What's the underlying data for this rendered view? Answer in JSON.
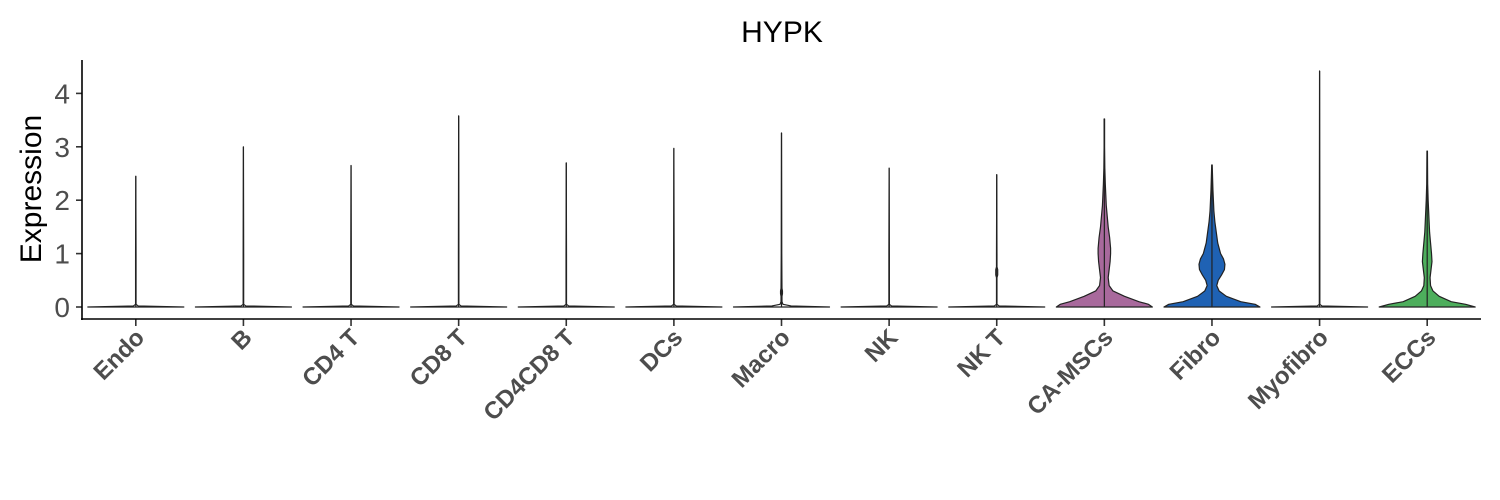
{
  "chart_data": {
    "type": "violin",
    "title": "HYPK",
    "xlabel": "",
    "ylabel": "Expression",
    "ylim": [
      -0.2,
      4.6
    ],
    "yticks": [
      "0",
      "1",
      "2",
      "3",
      "4"
    ],
    "grid": false,
    "legend": "none",
    "categories": [
      "Endo",
      "B",
      "CD4 T",
      "CD8 T",
      "CD4CD8 T",
      "DCs",
      "Macro",
      "NK",
      "NK T",
      "CA-MSCs",
      "Fibro",
      "Myofibro",
      "ECCs"
    ],
    "max_values": [
      2.45,
      3.0,
      2.65,
      3.58,
      2.7,
      2.97,
      3.26,
      2.6,
      2.48,
      3.52,
      2.66,
      4.42,
      2.92
    ],
    "fill_colors": [
      "#ffffff",
      "#ffffff",
      "#ffffff",
      "#ffffff",
      "#ffffff",
      "#ffffff",
      "#ffffff",
      "#ffffff",
      "#ffffff",
      "#a8699c",
      "#1f62b4",
      "#ffffff",
      "#4dae5c"
    ],
    "density_profiles": [
      [
        [
          0,
          1.0
        ],
        [
          0.02,
          0.05
        ],
        [
          0.05,
          0.005
        ],
        [
          1,
          0.005
        ]
      ],
      [
        [
          0,
          1.0
        ],
        [
          0.02,
          0.05
        ],
        [
          0.05,
          0.005
        ],
        [
          1,
          0.005
        ]
      ],
      [
        [
          0,
          1.0
        ],
        [
          0.02,
          0.05
        ],
        [
          0.05,
          0.005
        ],
        [
          1,
          0.005
        ]
      ],
      [
        [
          0,
          1.0
        ],
        [
          0.02,
          0.05
        ],
        [
          0.05,
          0.005
        ],
        [
          1,
          0.005
        ]
      ],
      [
        [
          0,
          1.0
        ],
        [
          0.02,
          0.05
        ],
        [
          0.05,
          0.005
        ],
        [
          1,
          0.005
        ]
      ],
      [
        [
          0,
          1.0
        ],
        [
          0.02,
          0.05
        ],
        [
          0.05,
          0.005
        ],
        [
          1,
          0.005
        ]
      ],
      [
        [
          0,
          1.0
        ],
        [
          0.02,
          0.2
        ],
        [
          0.05,
          0.03
        ],
        [
          0.1,
          0.01
        ],
        [
          0.2,
          0.01
        ],
        [
          0.25,
          0.02
        ],
        [
          0.3,
          0.02
        ],
        [
          0.35,
          0.01
        ],
        [
          1,
          0.005
        ]
      ],
      [
        [
          0,
          1.0
        ],
        [
          0.02,
          0.05
        ],
        [
          0.05,
          0.005
        ],
        [
          1,
          0.005
        ]
      ],
      [
        [
          0,
          1.0
        ],
        [
          0.02,
          0.05
        ],
        [
          0.05,
          0.005
        ],
        [
          0.55,
          0.005
        ],
        [
          0.6,
          0.02
        ],
        [
          0.7,
          0.02
        ],
        [
          0.75,
          0.005
        ],
        [
          1,
          0.005
        ]
      ],
      [
        [
          0,
          1.0
        ],
        [
          0.05,
          0.92
        ],
        [
          0.1,
          0.72
        ],
        [
          0.2,
          0.42
        ],
        [
          0.3,
          0.18
        ],
        [
          0.4,
          0.1
        ],
        [
          0.55,
          0.08
        ],
        [
          0.7,
          0.1
        ],
        [
          0.85,
          0.12
        ],
        [
          1.0,
          0.13
        ],
        [
          1.1,
          0.13
        ],
        [
          1.3,
          0.11
        ],
        [
          1.5,
          0.08
        ],
        [
          1.7,
          0.06
        ],
        [
          1.9,
          0.04
        ],
        [
          2.1,
          0.03
        ],
        [
          2.3,
          0.02
        ],
        [
          2.6,
          0.01
        ],
        [
          3.0,
          0.005
        ],
        [
          3.52,
          0.005
        ]
      ],
      [
        [
          0,
          1.0
        ],
        [
          0.05,
          0.9
        ],
        [
          0.1,
          0.6
        ],
        [
          0.2,
          0.3
        ],
        [
          0.3,
          0.15
        ],
        [
          0.4,
          0.1
        ],
        [
          0.5,
          0.13
        ],
        [
          0.6,
          0.2
        ],
        [
          0.7,
          0.26
        ],
        [
          0.8,
          0.27
        ],
        [
          0.9,
          0.24
        ],
        [
          1.0,
          0.18
        ],
        [
          1.2,
          0.12
        ],
        [
          1.4,
          0.09
        ],
        [
          1.6,
          0.06
        ],
        [
          1.8,
          0.04
        ],
        [
          2.0,
          0.03
        ],
        [
          2.2,
          0.02
        ],
        [
          2.66,
          0.005
        ]
      ],
      [
        [
          0,
          1.0
        ],
        [
          0.02,
          0.05
        ],
        [
          0.05,
          0.005
        ],
        [
          1,
          0.005
        ]
      ],
      [
        [
          0,
          1.0
        ],
        [
          0.05,
          0.8
        ],
        [
          0.1,
          0.5
        ],
        [
          0.2,
          0.25
        ],
        [
          0.3,
          0.12
        ],
        [
          0.4,
          0.07
        ],
        [
          0.55,
          0.06
        ],
        [
          0.7,
          0.08
        ],
        [
          0.85,
          0.1
        ],
        [
          1.0,
          0.09
        ],
        [
          1.2,
          0.07
        ],
        [
          1.4,
          0.05
        ],
        [
          1.6,
          0.04
        ],
        [
          1.8,
          0.03
        ],
        [
          2.0,
          0.02
        ],
        [
          2.3,
          0.01
        ],
        [
          2.92,
          0.005
        ]
      ]
    ]
  }
}
